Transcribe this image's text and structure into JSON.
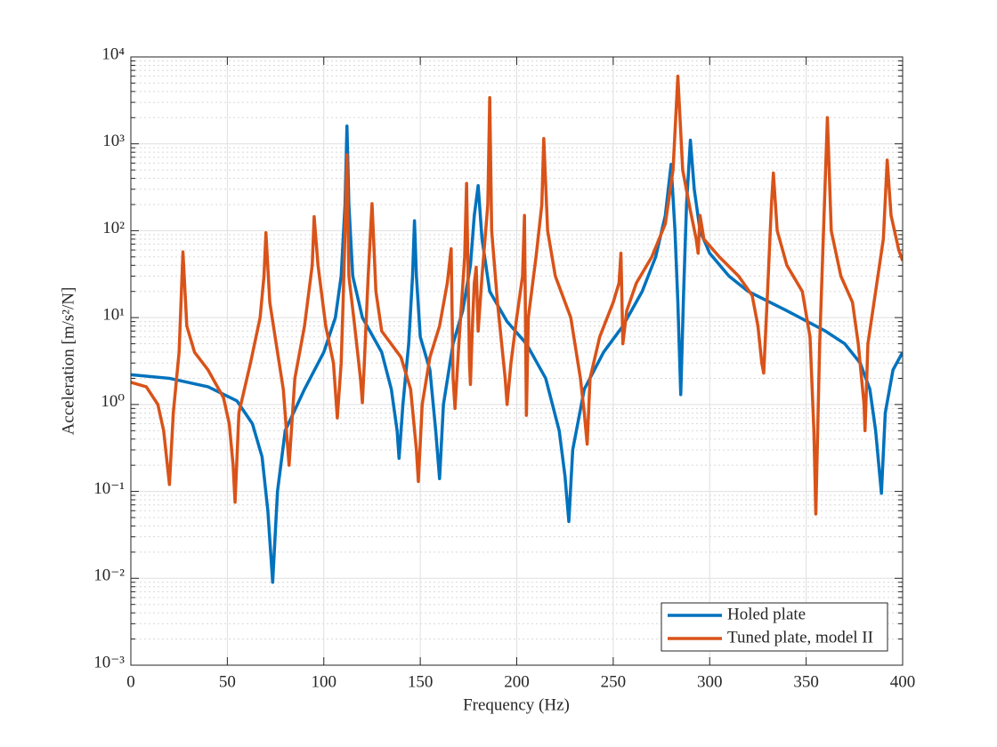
{
  "chart_data": {
    "type": "line",
    "xlabel": "Frequency (Hz)",
    "ylabel": "Acceleration [m/s²/N]",
    "xlim": [
      0,
      400
    ],
    "xticks": [
      0,
      50,
      100,
      150,
      200,
      250,
      300,
      350,
      400
    ],
    "ylim": [
      0.001,
      10000
    ],
    "yticks": [
      {
        "value": 0.001,
        "label": "10⁻³"
      },
      {
        "value": 0.01,
        "label": "10⁻²"
      },
      {
        "value": 0.1,
        "label": "10⁻¹"
      },
      {
        "value": 1,
        "label": "10⁰"
      },
      {
        "value": 10,
        "label": "10¹"
      },
      {
        "value": 100,
        "label": "10²"
      },
      {
        "value": 1000,
        "label": "10³"
      },
      {
        "value": 10000,
        "label": "10⁴"
      }
    ],
    "yscale": "log",
    "grid": true,
    "minor_grid": true,
    "legend": "lower right",
    "series": [
      {
        "name": "Holed plate",
        "color": "#0072BD",
        "x": [
          0,
          20,
          40,
          55,
          63,
          68,
          71,
          73.5,
          76,
          80,
          90,
          100,
          106,
          109,
          111,
          112,
          113,
          115,
          120,
          130,
          135,
          138,
          139,
          141,
          144,
          146,
          147,
          148,
          150,
          155,
          158,
          160,
          162,
          167,
          172,
          176,
          178,
          180,
          182,
          186,
          195,
          205,
          215,
          222,
          225,
          227,
          229,
          235,
          245,
          255,
          265,
          272,
          277,
          280,
          282,
          283.5,
          285,
          286.5,
          288,
          290,
          292,
          295,
          300,
          310,
          320,
          340,
          360,
          370,
          378,
          383,
          386,
          389,
          391,
          395,
          400
        ],
        "values": [
          2.2,
          2.0,
          1.6,
          1.1,
          0.6,
          0.25,
          0.06,
          0.009,
          0.1,
          0.5,
          1.5,
          4,
          10,
          30,
          200,
          1600,
          200,
          30,
          10,
          4,
          1.5,
          0.5,
          0.24,
          1,
          5,
          30,
          130,
          30,
          6,
          2.5,
          0.5,
          0.14,
          1,
          5,
          12,
          40,
          150,
          330,
          80,
          20,
          9,
          5,
          2,
          0.5,
          0.15,
          0.045,
          0.3,
          1.5,
          4,
          8,
          20,
          50,
          150,
          580,
          100,
          15,
          1.3,
          20,
          200,
          1100,
          300,
          100,
          55,
          30,
          20,
          12,
          7,
          5,
          3,
          1.5,
          0.5,
          0.095,
          0.8,
          2.5,
          4
        ]
      },
      {
        "name": "Tuned plate, model II",
        "color": "#D95319",
        "x": [
          0,
          8,
          14,
          17,
          20,
          22,
          25,
          27,
          29,
          33,
          40,
          48,
          51,
          53,
          54,
          56,
          62,
          67,
          69,
          70,
          72,
          76,
          79,
          82,
          85,
          90,
          94,
          95,
          97,
          101,
          105,
          107,
          109,
          110,
          111,
          112,
          113,
          116,
          119,
          120,
          121,
          123,
          125,
          127,
          130,
          140,
          145,
          148,
          149,
          151,
          155,
          160,
          164,
          166,
          167,
          168,
          170,
          173,
          174,
          175.5,
          176,
          177,
          178,
          179,
          180,
          182,
          185,
          186,
          187,
          190,
          194,
          195,
          197,
          200,
          203,
          204,
          205,
          206,
          210,
          213,
          214,
          216,
          220,
          228,
          233,
          235,
          236.5,
          238,
          243,
          250,
          253,
          254,
          255,
          257,
          262,
          270,
          277,
          281,
          283.5,
          286,
          290,
          293,
          294,
          295,
          297,
          305,
          315,
          322,
          325,
          327,
          328,
          330,
          332,
          333,
          335,
          340,
          348,
          352,
          354,
          355,
          357,
          359,
          361,
          363,
          368,
          374,
          377,
          380,
          380.5,
          382,
          386,
          390,
          392,
          394,
          398,
          400
        ],
        "values": [
          1.8,
          1.6,
          1,
          0.5,
          0.12,
          0.8,
          4,
          57,
          8,
          4,
          2.5,
          1.2,
          0.6,
          0.2,
          0.075,
          0.8,
          3,
          10,
          30,
          95,
          15,
          4,
          1.5,
          0.2,
          2,
          8,
          40,
          145,
          40,
          8,
          3,
          0.7,
          3,
          15,
          100,
          750,
          30,
          8,
          2,
          1.05,
          3,
          30,
          205,
          20,
          7,
          3.5,
          1.5,
          0.3,
          0.13,
          1,
          3.5,
          8,
          25,
          62,
          2,
          0.9,
          5,
          50,
          350,
          3,
          1.7,
          8,
          25,
          38,
          7,
          30,
          200,
          3400,
          100,
          15,
          2,
          1,
          3,
          10,
          30,
          150,
          0.75,
          10,
          50,
          200,
          1150,
          100,
          30,
          10,
          2,
          0.8,
          0.35,
          2,
          6,
          15,
          25,
          55,
          5,
          12,
          25,
          50,
          120,
          500,
          6000,
          500,
          170,
          80,
          55,
          150,
          80,
          50,
          30,
          18,
          8,
          3,
          2.3,
          20,
          200,
          460,
          100,
          40,
          20,
          6,
          0.5,
          0.055,
          5,
          100,
          2000,
          100,
          30,
          15,
          5,
          1,
          0.5,
          5,
          20,
          80,
          650,
          150,
          60,
          45
        ]
      }
    ]
  }
}
